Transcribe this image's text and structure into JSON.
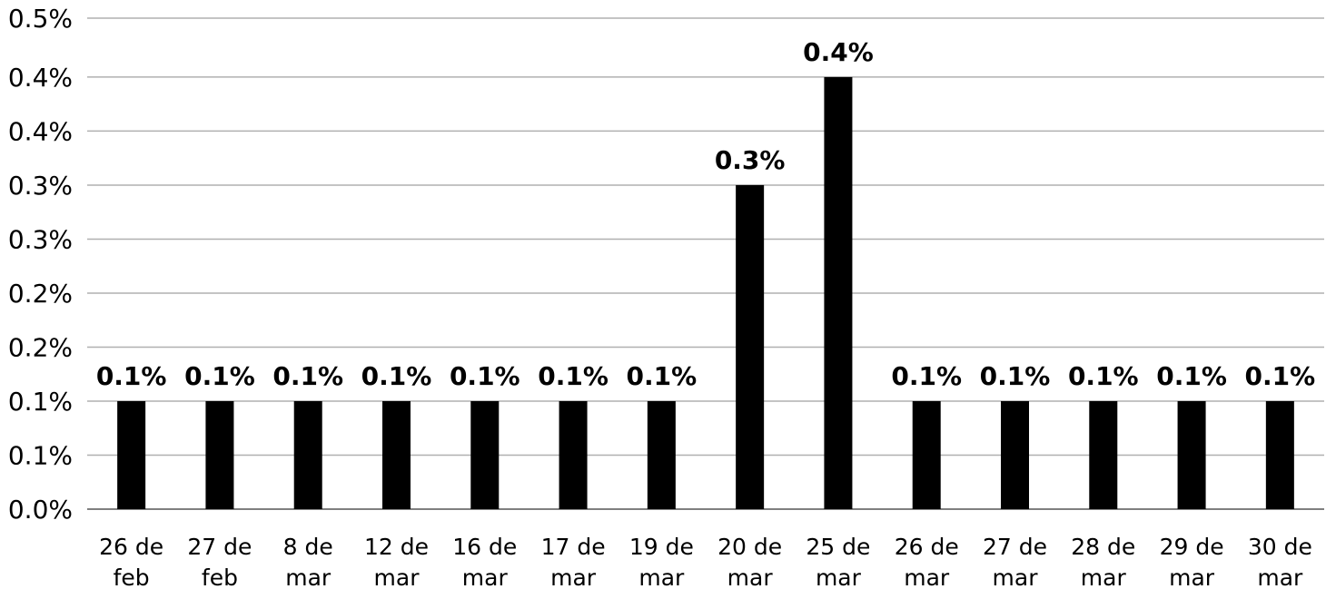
{
  "chart_data": {
    "type": "bar",
    "title": "",
    "xlabel": "",
    "ylabel": "",
    "ylim": [
      0,
      0.5
    ],
    "grid": true,
    "y_ticks": [
      "0.0%",
      "0.1%",
      "0.1%",
      "0.2%",
      "0.2%",
      "0.3%",
      "0.3%",
      "0.4%",
      "0.4%",
      "0.5%"
    ],
    "y_tick_values": [
      0.0,
      0.055,
      0.11,
      0.165,
      0.22,
      0.275,
      0.33,
      0.385,
      0.44,
      0.5
    ],
    "categories": [
      [
        "26 de",
        "feb"
      ],
      [
        "27 de",
        "feb"
      ],
      [
        "8 de",
        "mar"
      ],
      [
        "12 de",
        "mar"
      ],
      [
        "16 de",
        "mar"
      ],
      [
        "17 de",
        "mar"
      ],
      [
        "19 de",
        "mar"
      ],
      [
        "20 de",
        "mar"
      ],
      [
        "25 de",
        "mar"
      ],
      [
        "26 de",
        "mar"
      ],
      [
        "27 de",
        "mar"
      ],
      [
        "28 de",
        "mar"
      ],
      [
        "29 de",
        "mar"
      ],
      [
        "30 de",
        "mar"
      ]
    ],
    "values": [
      0.11,
      0.11,
      0.11,
      0.11,
      0.11,
      0.11,
      0.11,
      0.33,
      0.44,
      0.11,
      0.11,
      0.11,
      0.11,
      0.11
    ],
    "data_labels": [
      "0.1%",
      "0.1%",
      "0.1%",
      "0.1%",
      "0.1%",
      "0.1%",
      "0.1%",
      "0.3%",
      "0.4%",
      "0.1%",
      "0.1%",
      "0.1%",
      "0.1%",
      "0.1%"
    ],
    "colors": {
      "bar": "#000000",
      "grid": "#b0b0b0",
      "axis": "#7f7f7f"
    }
  }
}
